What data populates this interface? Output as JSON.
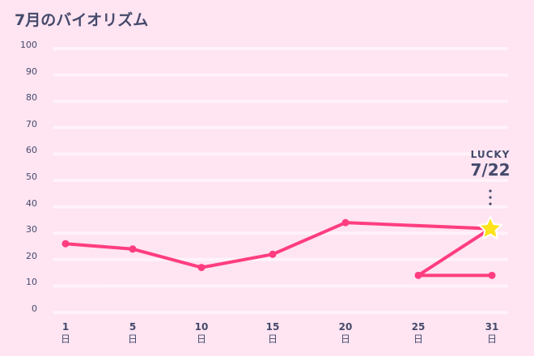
{
  "title": "7月のバイオリズム",
  "colors": {
    "background": "#ffe4f2",
    "gridline": "#fff2f9",
    "line": "#ff3d7f",
    "text": "#454a6b",
    "star": "#ffe21a"
  },
  "annotation": {
    "label": "LUCKY",
    "date": "7/22",
    "icon": "star-icon",
    "x_day": 22,
    "value": 32
  },
  "chart_data": {
    "type": "line",
    "title": "7月のバイオリズム",
    "xlabel": "",
    "ylabel": "",
    "ylim": [
      0,
      100
    ],
    "yticks": [
      0,
      10,
      20,
      30,
      40,
      50,
      60,
      70,
      80,
      90,
      100
    ],
    "grid": true,
    "legend": "none",
    "categories": [
      "1日",
      "5日",
      "10日",
      "15日",
      "20日",
      "25日",
      "31日"
    ],
    "x": [
      1,
      5,
      10,
      15,
      20,
      25,
      31
    ],
    "values": [
      26,
      24,
      17,
      22,
      34,
      14,
      14
    ],
    "x_labels": [
      {
        "num": "1",
        "unit": "日"
      },
      {
        "num": "5",
        "unit": "日"
      },
      {
        "num": "10",
        "unit": "日"
      },
      {
        "num": "15",
        "unit": "日"
      },
      {
        "num": "20",
        "unit": "日"
      },
      {
        "num": "25",
        "unit": "日"
      },
      {
        "num": "31",
        "unit": "日"
      }
    ],
    "annotations": [
      {
        "x": 22,
        "y": 32,
        "text": "LUCKY 7/22",
        "marker": "star"
      }
    ]
  }
}
